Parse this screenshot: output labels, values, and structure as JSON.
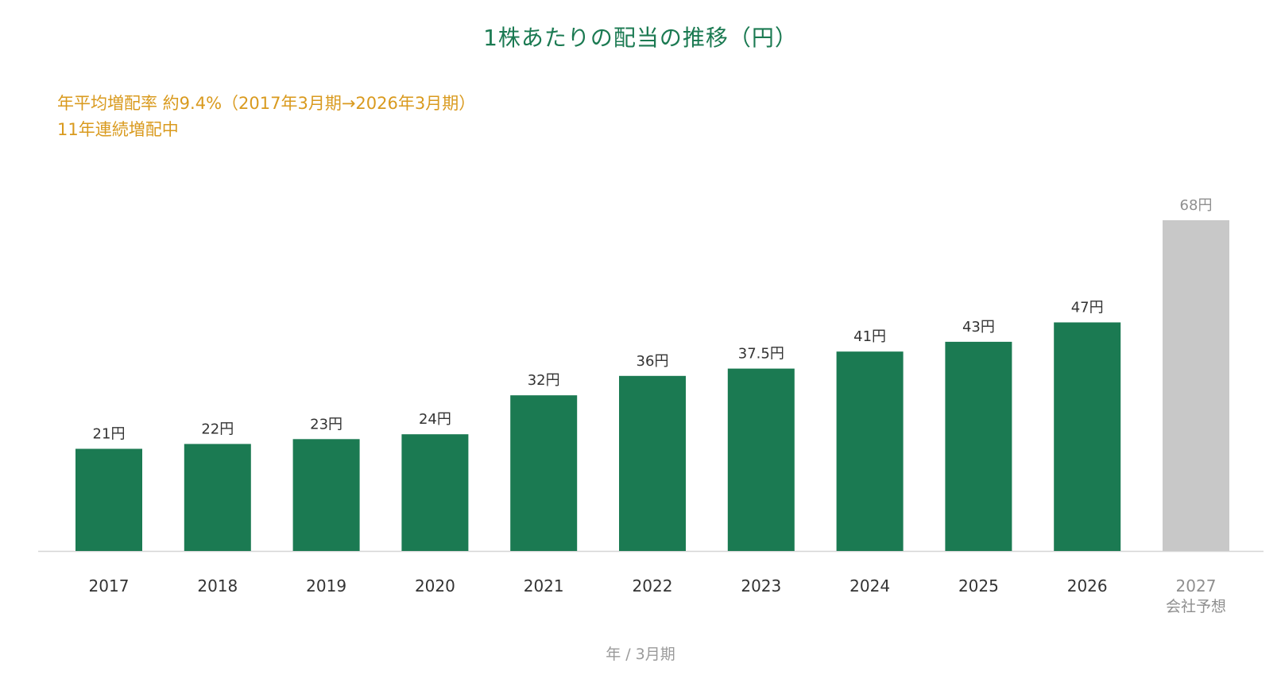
{
  "chart_data": {
    "type": "bar",
    "title": "1株あたりの配当の推移（円）",
    "annotations": [
      "年平均増配率 約9.4%（2017年3月期→2026年3月期）",
      "11年連続増配中"
    ],
    "categories": [
      "2017",
      "2018",
      "2019",
      "2020",
      "2021",
      "2022",
      "2023",
      "2024",
      "2025",
      "2026",
      "2027"
    ],
    "category_sublabels": [
      "",
      "",
      "",
      "",
      "",
      "",
      "",
      "",
      "",
      "",
      "会社予想"
    ],
    "values": [
      21,
      22,
      23,
      24,
      32,
      36,
      37.5,
      41,
      43,
      47,
      68
    ],
    "value_labels": [
      "21円",
      "22円",
      "23円",
      "24円",
      "32円",
      "36円",
      "37.5円",
      "41円",
      "43円",
      "47円",
      "68円"
    ],
    "forecast": [
      false,
      false,
      false,
      false,
      false,
      false,
      false,
      false,
      false,
      false,
      true
    ],
    "xlabel": "年 / 3月期",
    "ylabel": "",
    "ylim": [
      0,
      68
    ],
    "grid": false,
    "colors": {
      "actual": "#1b7a52",
      "forecast": "#c8c8c8",
      "actual_label": "#333333",
      "forecast_label": "#8f8f8f",
      "axis": "#d6d6d6"
    }
  }
}
